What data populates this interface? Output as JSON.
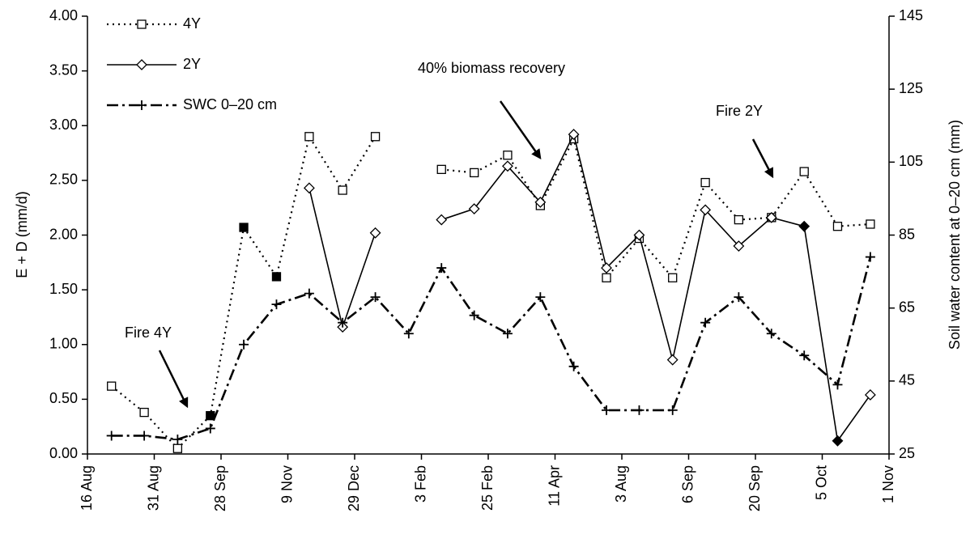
{
  "chart_data": {
    "type": "line",
    "y_label": "E + D (mm/d)",
    "y2_label": "Soil water content at 0–20 cm (mm)",
    "x": [
      0.36,
      0.85,
      1.35,
      1.84,
      2.34,
      2.83,
      3.32,
      3.82,
      4.31,
      4.81,
      5.3,
      5.79,
      6.29,
      6.78,
      7.28,
      7.77,
      8.26,
      8.76,
      9.25,
      9.75,
      10.24,
      10.73,
      11.23,
      11.72
    ],
    "xlim": [
      0,
      12
    ],
    "xticks": [
      {
        "value": 0,
        "label": "16 Aug"
      },
      {
        "value": 1,
        "label": "31 Aug"
      },
      {
        "value": 2,
        "label": "28 Sep"
      },
      {
        "value": 3,
        "label": "9 Nov"
      },
      {
        "value": 4,
        "label": "29 Dec"
      },
      {
        "value": 5,
        "label": "3 Feb"
      },
      {
        "value": 6,
        "label": "25 Feb"
      },
      {
        "value": 7,
        "label": "11 Apr"
      },
      {
        "value": 8,
        "label": "3 Aug"
      },
      {
        "value": 9,
        "label": "6 Sep"
      },
      {
        "value": 10,
        "label": "20 Sep"
      },
      {
        "value": 11,
        "label": "5 Oct"
      },
      {
        "value": 12,
        "label": "1 Nov"
      }
    ],
    "ylim": [
      0,
      4
    ],
    "yticks": [
      {
        "value": 0,
        "label": "0.00"
      },
      {
        "value": 0.5,
        "label": "0.50"
      },
      {
        "value": 1,
        "label": "1.00"
      },
      {
        "value": 1.5,
        "label": "1.50"
      },
      {
        "value": 2,
        "label": "2.00"
      },
      {
        "value": 2.5,
        "label": "2.50"
      },
      {
        "value": 3,
        "label": "3.00"
      },
      {
        "value": 3.5,
        "label": "3.50"
      },
      {
        "value": 4,
        "label": "4.00"
      }
    ],
    "y2lim": [
      25,
      145
    ],
    "y2ticks": [
      25,
      45,
      65,
      85,
      105,
      125,
      145
    ],
    "series": [
      {
        "name": "4Y",
        "color": "#000000",
        "marker": "square",
        "line": "dotted",
        "filled_points": [
          3,
          4,
          5
        ],
        "values": [
          0.62,
          0.38,
          0.05,
          0.35,
          2.07,
          1.62,
          2.9,
          2.41,
          2.9,
          null,
          2.6,
          2.57,
          2.73,
          2.27,
          2.88,
          1.61,
          1.97,
          1.61,
          2.48,
          2.14,
          2.16,
          2.58,
          2.08,
          2.1
        ]
      },
      {
        "name": "2Y",
        "color": "#000000",
        "marker": "diamond",
        "line": "solid",
        "filled_points": [
          21,
          22
        ],
        "values": [
          null,
          null,
          null,
          null,
          null,
          null,
          2.43,
          1.16,
          2.02,
          null,
          2.14,
          2.24,
          2.63,
          2.3,
          2.92,
          1.7,
          2.0,
          0.86,
          2.23,
          1.9,
          2.16,
          2.08,
          0.12,
          0.54
        ]
      },
      {
        "name": "SWC 0–20 cm",
        "color": "#000000",
        "marker": "plus",
        "line": "dashdot",
        "axis": "y2",
        "values": [
          30,
          30,
          29,
          32,
          55,
          66,
          69,
          61,
          68,
          58,
          76,
          63,
          58,
          68,
          49,
          37,
          37,
          37,
          61,
          68,
          58,
          52,
          44,
          79
        ]
      }
    ],
    "annotations": [
      "Fire 4Y",
      "40% biomass recovery",
      "Fire 2Y"
    ]
  }
}
